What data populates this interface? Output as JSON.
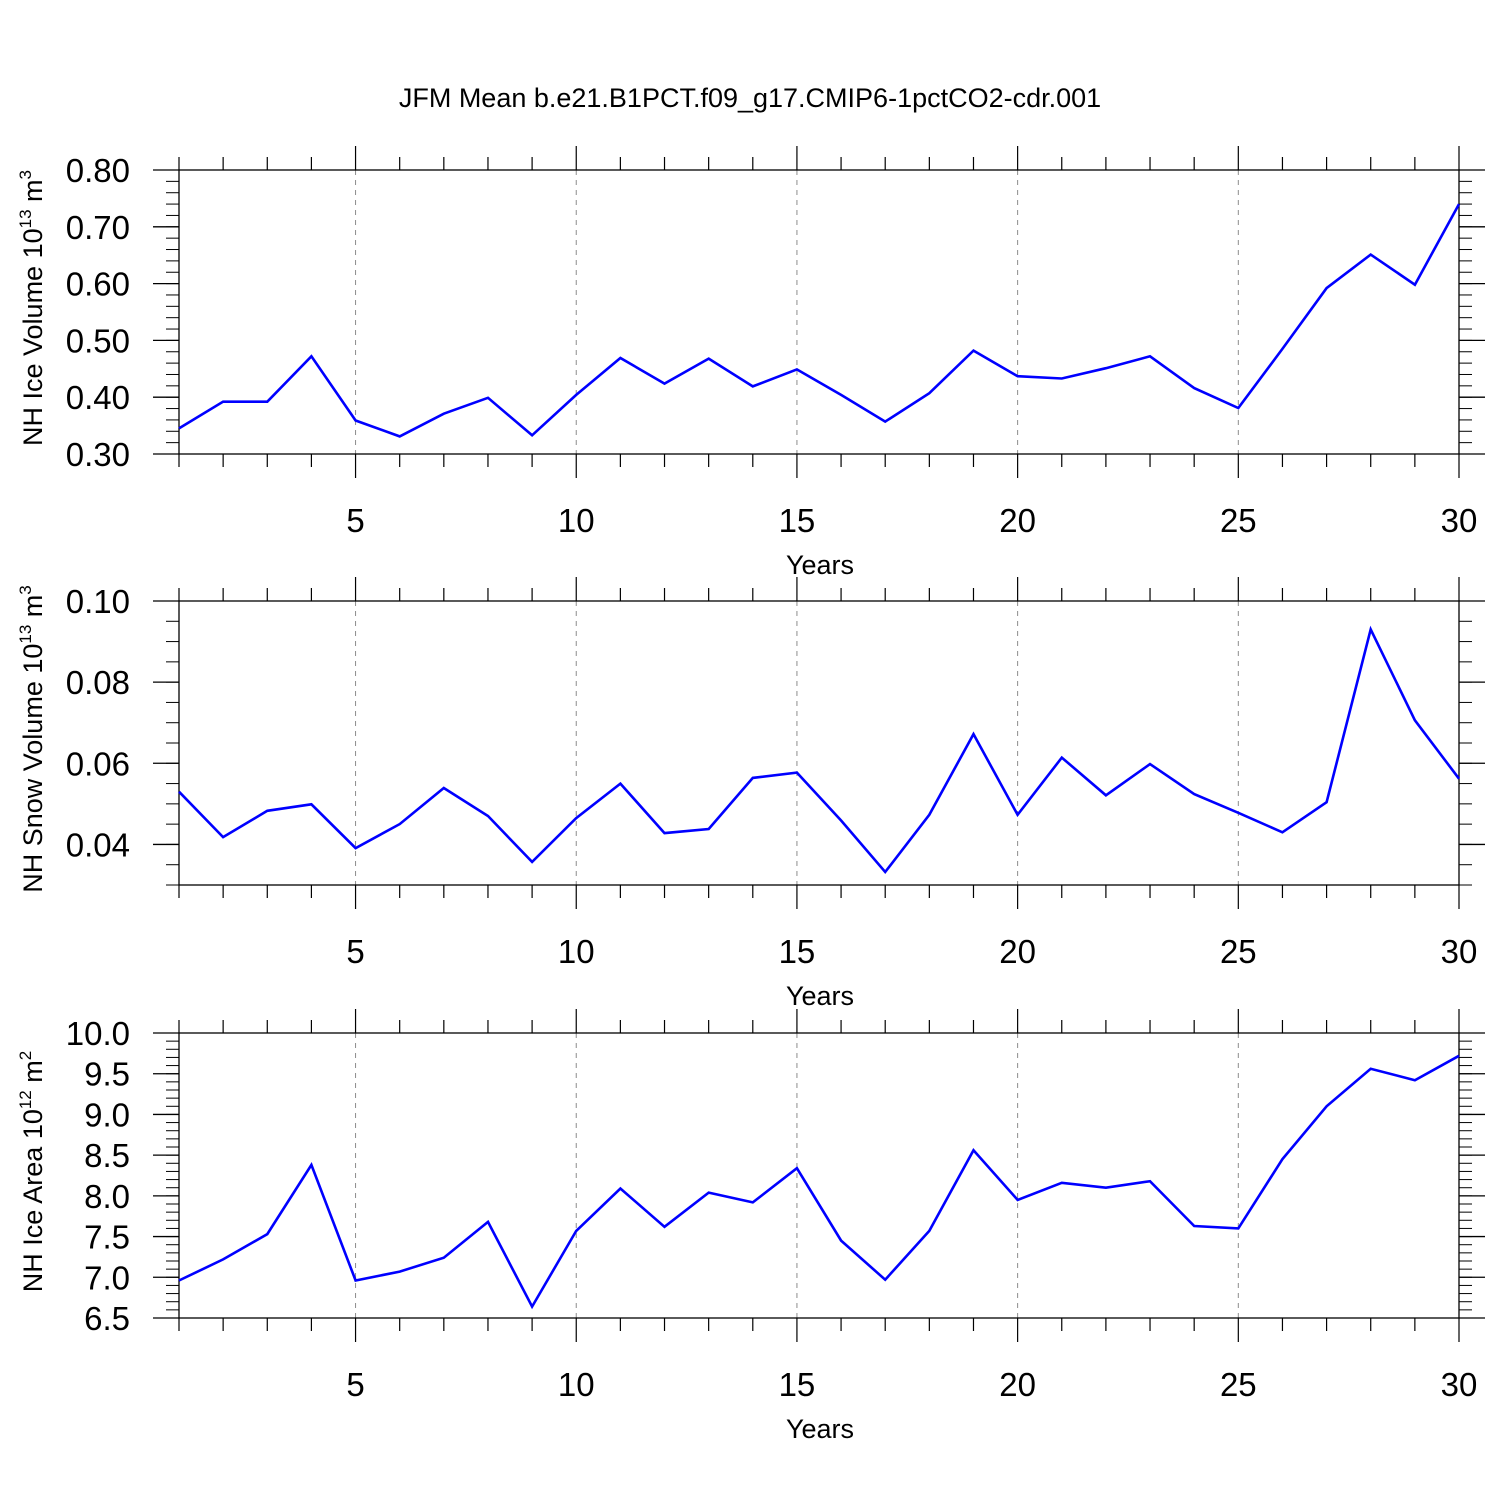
{
  "page": {
    "title": "JFM Mean b.e21.B1PCT.f09_g17.CMIP6-1pctCO2-cdr.001"
  },
  "colors": {
    "line": "#0000ff",
    "axis": "#000000",
    "grid": "#8c8c8c"
  },
  "chart_data": [
    {
      "type": "line",
      "ylabel": "NH Ice Volume 10",
      "ylabel_sup": "13",
      "ylabel_unit": " m",
      "ylabel_unit_sup": "3",
      "xlabel": "Years",
      "xlim": [
        1,
        30
      ],
      "ylim": [
        0.3,
        0.8
      ],
      "ytick_values": [
        0.3,
        0.4,
        0.5,
        0.6,
        0.7,
        0.8
      ],
      "ytick_labels": [
        "0.30",
        "0.40",
        "0.50",
        "0.60",
        "0.70",
        "0.80"
      ],
      "yminor_step": 0.02,
      "xtick_values": [
        5,
        10,
        15,
        20,
        25,
        30
      ],
      "xtick_labels": [
        "5",
        "10",
        "15",
        "20",
        "25",
        "30"
      ],
      "grid": "dashed vertical at major x ticks",
      "series": [
        {
          "name": "NH Ice Volume",
          "x": [
            1,
            2,
            3,
            4,
            5,
            6,
            7,
            8,
            9,
            10,
            11,
            12,
            13,
            14,
            15,
            16,
            17,
            18,
            19,
            20,
            21,
            22,
            23,
            24,
            25,
            26,
            27,
            28,
            29,
            30
          ],
          "values": [
            0.345,
            0.392,
            0.392,
            0.472,
            0.359,
            0.331,
            0.371,
            0.399,
            0.333,
            0.404,
            0.469,
            0.424,
            0.468,
            0.419,
            0.449,
            0.404,
            0.357,
            0.407,
            0.482,
            0.437,
            0.433,
            0.451,
            0.472,
            0.416,
            0.381,
            0.485,
            0.592,
            0.651,
            0.598,
            0.74
          ]
        }
      ]
    },
    {
      "type": "line",
      "ylabel": "NH Snow Volume 10",
      "ylabel_sup": "13",
      "ylabel_unit": " m",
      "ylabel_unit_sup": "3",
      "xlabel": "Years",
      "xlim": [
        1,
        30
      ],
      "ylim": [
        0.03,
        0.1
      ],
      "ytick_values": [
        0.04,
        0.06,
        0.08,
        0.1
      ],
      "ytick_labels": [
        "0.04",
        "0.06",
        "0.08",
        "0.10"
      ],
      "yminor_step": 0.005,
      "xtick_values": [
        5,
        10,
        15,
        20,
        25,
        30
      ],
      "xtick_labels": [
        "5",
        "10",
        "15",
        "20",
        "25",
        "30"
      ],
      "grid": "dashed vertical at major x ticks",
      "series": [
        {
          "name": "NH Snow Volume",
          "x": [
            1,
            2,
            3,
            4,
            5,
            6,
            7,
            8,
            9,
            10,
            11,
            12,
            13,
            14,
            15,
            16,
            17,
            18,
            19,
            20,
            21,
            22,
            23,
            24,
            25,
            26,
            27,
            28,
            29,
            30
          ],
          "values": [
            0.053,
            0.0418,
            0.0483,
            0.0499,
            0.0391,
            0.045,
            0.0539,
            0.047,
            0.0357,
            0.0465,
            0.055,
            0.0428,
            0.0438,
            0.0564,
            0.0577,
            0.0459,
            0.0332,
            0.0473,
            0.0672,
            0.0473,
            0.0614,
            0.0521,
            0.0598,
            0.0524,
            0.0478,
            0.043,
            0.0504,
            0.093,
            0.0706,
            0.0562
          ]
        }
      ]
    },
    {
      "type": "line",
      "ylabel": "NH Ice Area 10",
      "ylabel_sup": "12",
      "ylabel_unit": " m",
      "ylabel_unit_sup": "2",
      "xlabel": "Years",
      "xlim": [
        1,
        30
      ],
      "ylim": [
        6.5,
        10.0
      ],
      "ytick_values": [
        6.5,
        7.0,
        7.5,
        8.0,
        8.5,
        9.0,
        9.5,
        10.0
      ],
      "ytick_labels": [
        "6.5",
        "7.0",
        "7.5",
        "8.0",
        "8.5",
        "9.0",
        "9.5",
        "10.0"
      ],
      "yminor_step": 0.1,
      "xtick_values": [
        5,
        10,
        15,
        20,
        25,
        30
      ],
      "xtick_labels": [
        "5",
        "10",
        "15",
        "20",
        "25",
        "30"
      ],
      "grid": "dashed vertical at major x ticks",
      "series": [
        {
          "name": "NH Ice Area",
          "x": [
            1,
            2,
            3,
            4,
            5,
            6,
            7,
            8,
            9,
            10,
            11,
            12,
            13,
            14,
            15,
            16,
            17,
            18,
            19,
            20,
            21,
            22,
            23,
            24,
            25,
            26,
            27,
            28,
            29,
            30
          ],
          "values": [
            6.96,
            7.22,
            7.53,
            8.38,
            6.96,
            7.07,
            7.24,
            7.68,
            6.64,
            7.57,
            8.09,
            7.62,
            8.04,
            7.92,
            8.34,
            7.45,
            6.97,
            7.57,
            8.56,
            7.95,
            8.16,
            8.1,
            8.18,
            7.63,
            7.6,
            8.45,
            9.1,
            9.56,
            9.42,
            9.72
          ]
        }
      ]
    }
  ]
}
